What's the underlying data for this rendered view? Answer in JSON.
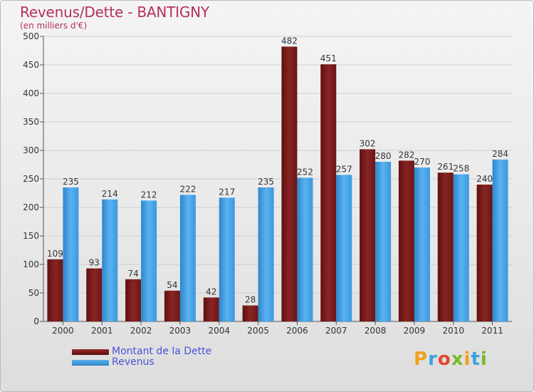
{
  "title": "Revenus/Dette - BANTIGNY",
  "subtitle": "(en milliers d'€)",
  "colors": {
    "dette": "#7a1c1c",
    "revenus": "#3d9be0",
    "title": "#b5305a",
    "legend_text": "#4b52d6"
  },
  "legend": {
    "dette_label": "Montant de la Dette",
    "revenus_label": "Revenus"
  },
  "logo": {
    "text": "Proxiti"
  },
  "chart_data": {
    "type": "bar",
    "title": "Revenus/Dette - BANTIGNY",
    "ylabel": "(en milliers d'€)",
    "xlabel": "",
    "categories": [
      "2000",
      "2001",
      "2002",
      "2003",
      "2004",
      "2005",
      "2006",
      "2007",
      "2008",
      "2009",
      "2010",
      "2011"
    ],
    "series": [
      {
        "name": "Montant de la Dette",
        "values": [
          109,
          93,
          74,
          54,
          42,
          28,
          482,
          451,
          302,
          282,
          261,
          240
        ]
      },
      {
        "name": "Revenus",
        "values": [
          235,
          214,
          212,
          222,
          217,
          235,
          252,
          257,
          280,
          270,
          258,
          284
        ]
      }
    ],
    "ylim": [
      0,
      500
    ],
    "yticks": [
      0,
      50,
      100,
      150,
      200,
      250,
      300,
      350,
      400,
      450,
      500
    ],
    "grid": true,
    "legend_position": "bottom-left"
  }
}
